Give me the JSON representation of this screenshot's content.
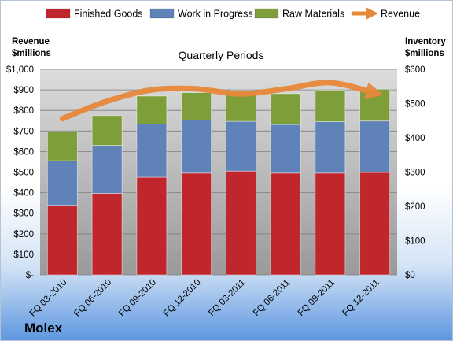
{
  "company": "Molex",
  "chart_data": {
    "type": "bar",
    "stacked": true,
    "title": "Quarterly Periods",
    "left_axis_label": [
      "Revenue",
      "$millions"
    ],
    "right_axis_label": [
      "Inventory",
      "$millions"
    ],
    "categories": [
      "FQ 03-2010",
      "FQ 06-2010",
      "FQ 09-2010",
      "FQ 12-2010",
      "FQ 03-2011",
      "FQ 06-2011",
      "FQ 09-2011",
      "FQ 12-2011"
    ],
    "series": [
      {
        "name": "Finished Goods",
        "color": "#c0272d",
        "values": [
          203,
          238,
          285,
          297,
          303,
          297,
          297,
          299
        ]
      },
      {
        "name": "Work in Progress",
        "color": "#5f82b8",
        "values": [
          130,
          140,
          155,
          155,
          145,
          142,
          150,
          150
        ]
      },
      {
        "name": "Raw Materials",
        "color": "#7e9e3a",
        "values": [
          85,
          87,
          82,
          80,
          90,
          90,
          92,
          93
        ]
      }
    ],
    "line_series": {
      "name": "Revenue",
      "color": "#e8883a",
      "values": [
        760,
        845,
        900,
        905,
        880,
        905,
        935,
        885
      ]
    },
    "left_ticks": [
      "$-",
      "$100",
      "$200",
      "$300",
      "$400",
      "$500",
      "$600",
      "$700",
      "$800",
      "$900",
      "$1,000"
    ],
    "left_ylim": [
      0,
      1000
    ],
    "right_ticks": [
      "$0",
      "$100",
      "$200",
      "$300",
      "$400",
      "$500",
      "$600"
    ],
    "right_ylim": [
      0,
      600
    ],
    "grid": true,
    "legend_position": "top"
  }
}
